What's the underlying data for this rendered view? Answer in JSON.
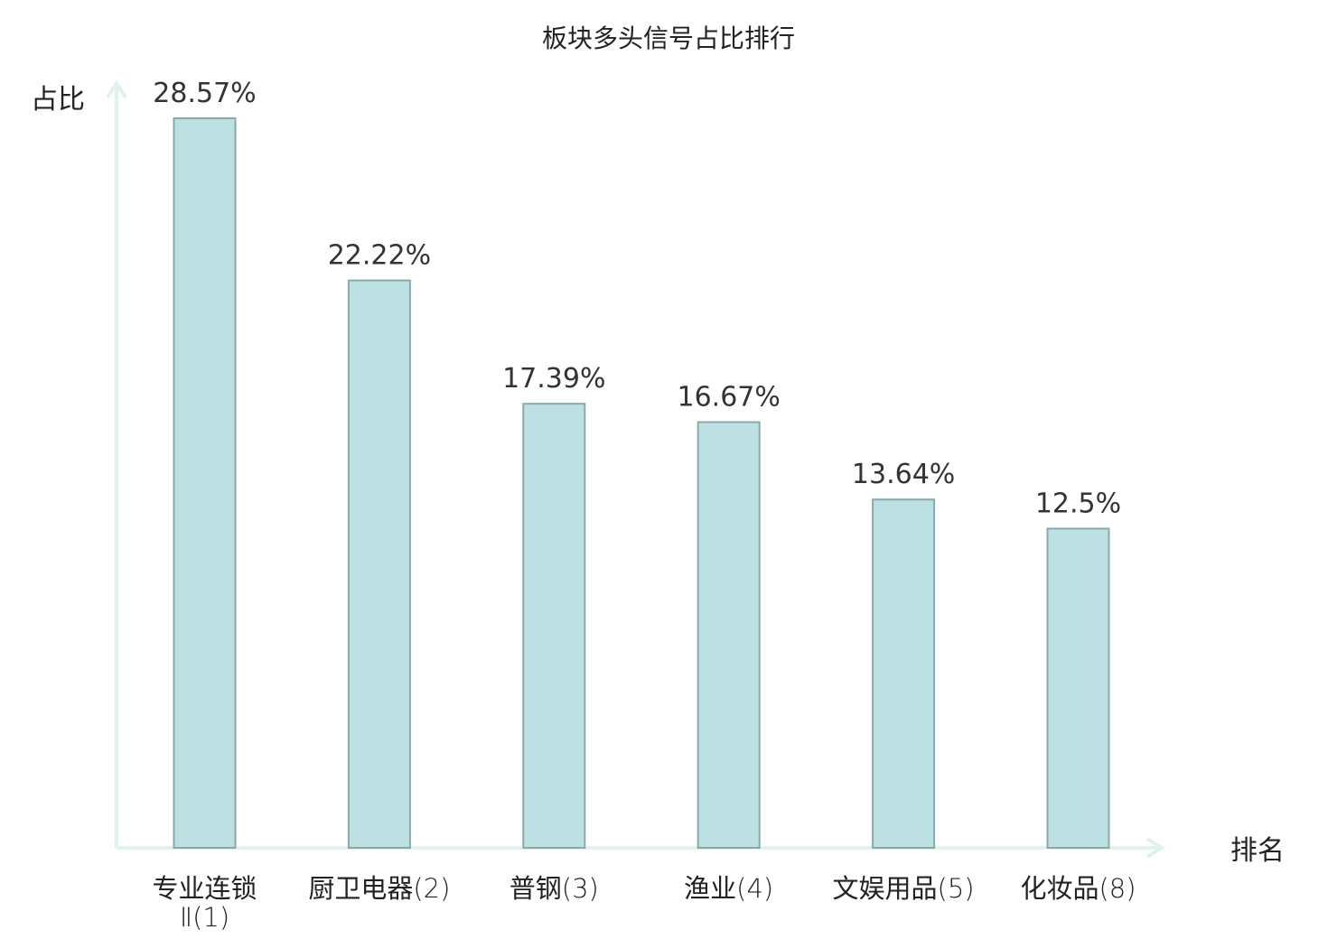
{
  "chart_data": {
    "type": "bar",
    "title": "板块多头信号占比排行",
    "xlabel": "排名",
    "ylabel": "占比",
    "categories": [
      {
        "name": "专业连锁",
        "suffix": "Ⅱ(1)",
        "highlight": false
      },
      {
        "name": "厨卫电器",
        "suffix": "(2)",
        "highlight": false
      },
      {
        "name": "普钢",
        "suffix": "(3)",
        "highlight": false
      },
      {
        "name": "渔业",
        "suffix": "(4)",
        "highlight": false
      },
      {
        "name": "文娱用品",
        "suffix": "(5)",
        "highlight": false
      },
      {
        "name": "化妆品",
        "suffix": "(8)",
        "highlight": true
      }
    ],
    "values": [
      28.57,
      22.22,
      17.39,
      16.67,
      13.64,
      12.5
    ],
    "value_labels": [
      "28.57%",
      "22.22%",
      "17.39%",
      "16.67%",
      "13.64%",
      "12.5%"
    ],
    "ylim": [
      0,
      30
    ],
    "grid": false,
    "colors": {
      "bar_fill": "#bde0e3",
      "bar_stroke": "#8aa9ab",
      "axis": "#dff2f0",
      "highlight_text": "#e00000",
      "normal_text": "#222222"
    }
  }
}
